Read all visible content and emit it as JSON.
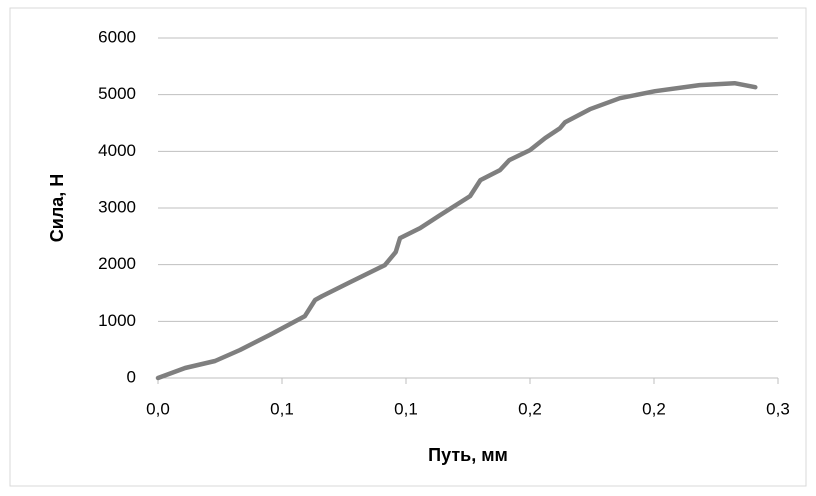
{
  "chart_data": {
    "type": "line",
    "x_label": "Путь, мм",
    "y_label": "Сила, Н",
    "x": [
      0,
      0.0131,
      0.0276,
      0.0397,
      0.054,
      0.0711,
      0.076,
      0.0794,
      0.093,
      0.1098,
      0.115,
      0.1171,
      0.1268,
      0.1365,
      0.151,
      0.156,
      0.1655,
      0.17,
      0.18,
      0.1873,
      0.1945,
      0.197,
      0.209,
      0.2235,
      0.2405,
      0.262,
      0.279,
      0.289
    ],
    "series": [
      {
        "color": "#7f7f7f",
        "values": [
          0,
          176,
          300,
          494,
          758,
          1093,
          1376,
          1446,
          1693,
          1993,
          2222,
          2469,
          2646,
          2875,
          3210,
          3492,
          3668,
          3845,
          4021,
          4233,
          4409,
          4515,
          4744,
          4938,
          5062,
          5168,
          5203,
          5132
        ]
      }
    ],
    "xlim": [
      0,
      0.3
    ],
    "xticks": [
      {
        "value": 0,
        "label": "0,0"
      },
      {
        "value": 0.06,
        "label": "0,1"
      },
      {
        "value": 0.12,
        "label": "0,1"
      },
      {
        "value": 0.18,
        "label": "0,2"
      },
      {
        "value": 0.24,
        "label": "0,2"
      },
      {
        "value": 0.3,
        "label": "0,3"
      }
    ],
    "ylim": [
      0,
      6000
    ],
    "yticks": [
      0,
      1000,
      2000,
      3000,
      4000,
      5000,
      6000
    ],
    "grid": true
  }
}
